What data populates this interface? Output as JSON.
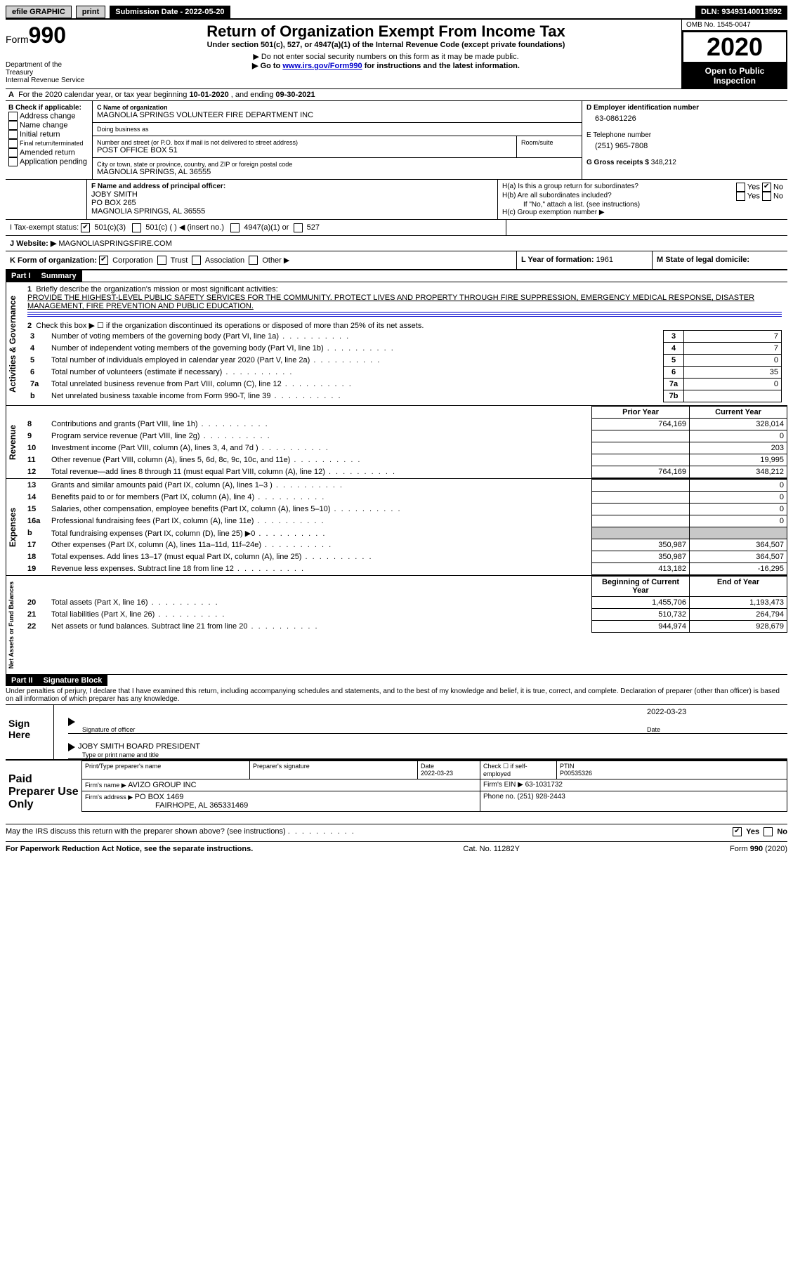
{
  "topbar": {
    "efile": "efile GRAPHIC",
    "print": "print",
    "submission_label": "Submission Date - ",
    "submission_date": "2022-05-20",
    "dln_label": "DLN: ",
    "dln": "93493140013592"
  },
  "header": {
    "form_word": "Form",
    "form_num": "990",
    "dept": "Department of the Treasury\nInternal Revenue Service",
    "title": "Return of Organization Exempt From Income Tax",
    "subtitle": "Under section 501(c), 527, or 4947(a)(1) of the Internal Revenue Code (except private foundations)",
    "note1": "▶ Do not enter social security numbers on this form as it may be made public.",
    "note2_pre": "▶ Go to ",
    "note2_link": "www.irs.gov/Form990",
    "note2_post": " for instructions and the latest information.",
    "omb": "OMB No. 1545-0047",
    "year": "2020",
    "open": "Open to Public Inspection"
  },
  "line_a": {
    "text_pre": "For the 2020 calendar year, or tax year beginning ",
    "begin": "10-01-2020",
    "mid": " , and ending ",
    "end": "09-30-2021"
  },
  "section_b": {
    "heading": "B Check if applicable:",
    "items": [
      "Address change",
      "Name change",
      "Initial return",
      "Final return/terminated",
      "Amended return",
      "Application pending"
    ]
  },
  "section_c": {
    "name_label": "C Name of organization",
    "name": "MAGNOLIA SPRINGS VOLUNTEER FIRE DEPARTMENT INC",
    "dba_label": "Doing business as",
    "dba": "",
    "addr_label": "Number and street (or P.O. box if mail is not delivered to street address)",
    "addr": "POST OFFICE BOX 51",
    "room_label": "Room/suite",
    "city_label": "City or town, state or province, country, and ZIP or foreign postal code",
    "city": "MAGNOLIA SPRINGS, AL  36555"
  },
  "section_d": {
    "ein_label": "D Employer identification number",
    "ein": "63-0861226",
    "phone_label": "E Telephone number",
    "phone": "(251) 965-7808",
    "gross_label": "G Gross receipts $ ",
    "gross": "348,212"
  },
  "section_f": {
    "label": "F Name and address of principal officer:",
    "name": "JOBY SMITH",
    "addr1": "PO BOX 265",
    "addr2": "MAGNOLIA SPRINGS, AL  36555"
  },
  "section_h": {
    "ha": "H(a)  Is this a group return for subordinates?",
    "hb": "H(b)  Are all subordinates included?",
    "hb_note": "If \"No,\" attach a list. (see instructions)",
    "hc": "H(c)  Group exemption number ▶",
    "yes": "Yes",
    "no": "No"
  },
  "line_i": {
    "label": "I    Tax-exempt status:",
    "o1": "501(c)(3)",
    "o2": "501(c) (   ) ◀ (insert no.)",
    "o3": "4947(a)(1) or",
    "o4": "527"
  },
  "line_j": {
    "label": "J    Website: ▶",
    "value": "MAGNOLIASPRINGSFIRE.COM"
  },
  "line_k": {
    "label": "K Form of organization:",
    "o1": "Corporation",
    "o2": "Trust",
    "o3": "Association",
    "o4": "Other ▶"
  },
  "line_l": {
    "label": "L Year of formation: ",
    "value": "1961"
  },
  "line_m": {
    "label": "M State of legal domicile:",
    "value": ""
  },
  "part1": {
    "tag": "Part I",
    "title": "Summary",
    "side_gov": "Activities & Governance",
    "side_rev": "Revenue",
    "side_exp": "Expenses",
    "side_net": "Net Assets or Fund Balances",
    "l1": "Briefly describe the organization's mission or most significant activities:",
    "l1_text": "PROVIDE THE HIGHEST-LEVEL PUBLIC SAFETY SERVICES FOR THE COMMUNITY. PROTECT LIVES AND PROPERTY THROUGH FIRE SUPPRESSION, EMERGENCY MEDICAL RESPONSE, DISASTER MANAGEMENT, FIRE PREVENTION AND PUBLIC EDUCATION.",
    "l2": "Check this box ▶ ☐  if the organization discontinued its operations or disposed of more than 25% of its net assets.",
    "rows_gov": [
      {
        "n": "3",
        "t": "Number of voting members of the governing body (Part VI, line 1a)",
        "box": "3",
        "v": "7"
      },
      {
        "n": "4",
        "t": "Number of independent voting members of the governing body (Part VI, line 1b)",
        "box": "4",
        "v": "7"
      },
      {
        "n": "5",
        "t": "Total number of individuals employed in calendar year 2020 (Part V, line 2a)",
        "box": "5",
        "v": "0"
      },
      {
        "n": "6",
        "t": "Total number of volunteers (estimate if necessary)",
        "box": "6",
        "v": "35"
      },
      {
        "n": "7a",
        "t": "Total unrelated business revenue from Part VIII, column (C), line 12",
        "box": "7a",
        "v": "0"
      },
      {
        "n": "b",
        "t": "Net unrelated business taxable income from Form 990-T, line 39",
        "box": "7b",
        "v": ""
      }
    ],
    "col_prior": "Prior Year",
    "col_current": "Current Year",
    "rows_rev": [
      {
        "n": "8",
        "t": "Contributions and grants (Part VIII, line 1h)",
        "p": "764,169",
        "c": "328,014"
      },
      {
        "n": "9",
        "t": "Program service revenue (Part VIII, line 2g)",
        "p": "",
        "c": "0"
      },
      {
        "n": "10",
        "t": "Investment income (Part VIII, column (A), lines 3, 4, and 7d )",
        "p": "",
        "c": "203"
      },
      {
        "n": "11",
        "t": "Other revenue (Part VIII, column (A), lines 5, 6d, 8c, 9c, 10c, and 11e)",
        "p": "",
        "c": "19,995"
      },
      {
        "n": "12",
        "t": "Total revenue—add lines 8 through 11 (must equal Part VIII, column (A), line 12)",
        "p": "764,169",
        "c": "348,212"
      }
    ],
    "rows_exp": [
      {
        "n": "13",
        "t": "Grants and similar amounts paid (Part IX, column (A), lines 1–3 )",
        "p": "",
        "c": "0"
      },
      {
        "n": "14",
        "t": "Benefits paid to or for members (Part IX, column (A), line 4)",
        "p": "",
        "c": "0"
      },
      {
        "n": "15",
        "t": "Salaries, other compensation, employee benefits (Part IX, column (A), lines 5–10)",
        "p": "",
        "c": "0"
      },
      {
        "n": "16a",
        "t": "Professional fundraising fees (Part IX, column (A), line 11e)",
        "p": "",
        "c": "0"
      },
      {
        "n": "b",
        "t": "Total fundraising expenses (Part IX, column (D), line 25) ▶0",
        "p": "SHADE",
        "c": "SHADE"
      },
      {
        "n": "17",
        "t": "Other expenses (Part IX, column (A), lines 11a–11d, 11f–24e)",
        "p": "350,987",
        "c": "364,507"
      },
      {
        "n": "18",
        "t": "Total expenses. Add lines 13–17 (must equal Part IX, column (A), line 25)",
        "p": "350,987",
        "c": "364,507"
      },
      {
        "n": "19",
        "t": "Revenue less expenses. Subtract line 18 from line 12",
        "p": "413,182",
        "c": "-16,295"
      }
    ],
    "col_begin": "Beginning of Current Year",
    "col_end": "End of Year",
    "rows_net": [
      {
        "n": "20",
        "t": "Total assets (Part X, line 16)",
        "p": "1,455,706",
        "c": "1,193,473"
      },
      {
        "n": "21",
        "t": "Total liabilities (Part X, line 26)",
        "p": "510,732",
        "c": "264,794"
      },
      {
        "n": "22",
        "t": "Net assets or fund balances. Subtract line 21 from line 20",
        "p": "944,974",
        "c": "928,679"
      }
    ]
  },
  "part2": {
    "tag": "Part II",
    "title": "Signature Block",
    "declaration": "Under penalties of perjury, I declare that I have examined this return, including accompanying schedules and statements, and to the best of my knowledge and belief, it is true, correct, and complete. Declaration of preparer (other than officer) is based on all information of which preparer has any knowledge.",
    "sign_here": "Sign Here",
    "sig_officer": "Signature of officer",
    "sig_date": "Date",
    "sig_date_val": "2022-03-23",
    "officer_name": "JOBY SMITH  BOARD PRESIDENT",
    "type_name": "Type or print name and title",
    "paid": "Paid Preparer Use Only",
    "prep_name_label": "Print/Type preparer's name",
    "prep_sig_label": "Preparer's signature",
    "prep_date_label": "Date",
    "prep_date": "2022-03-23",
    "self_emp": "Check ☐ if self-employed",
    "ptin_label": "PTIN",
    "ptin": "P00535326",
    "firm_name_label": "Firm's name    ▶ ",
    "firm_name": "AVIZO GROUP INC",
    "firm_ein_label": "Firm's EIN ▶ ",
    "firm_ein": "63-1031732",
    "firm_addr_label": "Firm's address ▶ ",
    "firm_addr": "PO BOX 1469",
    "firm_addr2": "FAIRHOPE, AL  365331469",
    "firm_phone_label": "Phone no. ",
    "firm_phone": "(251) 928-2443",
    "discuss": "May the IRS discuss this return with the preparer shown above? (see instructions)"
  },
  "footer": {
    "left": "For Paperwork Reduction Act Notice, see the separate instructions.",
    "mid": "Cat. No. 11282Y",
    "right": "Form 990 (2020)"
  }
}
